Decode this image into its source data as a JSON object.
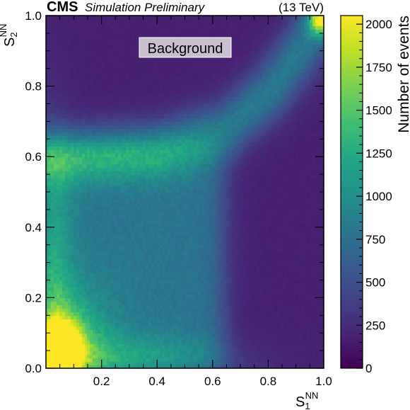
{
  "header": {
    "experiment": "CMS",
    "status": "Simulation Preliminary",
    "energy": "(13 TeV)"
  },
  "chart_data": {
    "type": "heatmap",
    "panel_label": "Background",
    "xlabel": {
      "base": "S",
      "sub": "1",
      "sup": "NN"
    },
    "ylabel": {
      "base": "S",
      "sub": "2",
      "sup": "NN"
    },
    "xlim": [
      0,
      1
    ],
    "ylim": [
      0,
      1
    ],
    "xticks": [
      {
        "value": 0.2,
        "label": "0.2"
      },
      {
        "value": 0.4,
        "label": "0.4"
      },
      {
        "value": 0.6,
        "label": "0.6"
      },
      {
        "value": 0.8,
        "label": "0.8"
      },
      {
        "value": 1.0,
        "label": "1.0"
      }
    ],
    "yticks": [
      {
        "value": 0.0,
        "label": "0.0"
      },
      {
        "value": 0.2,
        "label": "0.2"
      },
      {
        "value": 0.4,
        "label": "0.4"
      },
      {
        "value": 0.6,
        "label": "0.6"
      },
      {
        "value": 0.8,
        "label": "0.8"
      },
      {
        "value": 1.0,
        "label": "1.0"
      }
    ],
    "colorbar": {
      "label": "Number of events",
      "colormap": "viridis",
      "range": [
        0,
        2050
      ],
      "ticks": [
        {
          "value": 0,
          "label": "0"
        },
        {
          "value": 250,
          "label": "250"
        },
        {
          "value": 500,
          "label": "500"
        },
        {
          "value": 750,
          "label": "750"
        },
        {
          "value": 1000,
          "label": "1000"
        },
        {
          "value": 1250,
          "label": "1250"
        },
        {
          "value": 1500,
          "label": "1500"
        },
        {
          "value": 1750,
          "label": "1750"
        },
        {
          "value": 2000,
          "label": "2000"
        }
      ]
    },
    "density_model": {
      "background_level": 180,
      "components": [
        {
          "name": "low-score peak",
          "x": 0.05,
          "y": 0.05,
          "sx": 0.05,
          "sy": 0.05,
          "amplitude": 1750
        },
        {
          "name": "low-score halo",
          "x": 0.05,
          "y": 0.05,
          "sx": 0.11,
          "sy": 0.11,
          "amplitude": 800
        },
        {
          "name": "low-s1 band",
          "x": 0.0,
          "y": 0.3,
          "sx": 0.06,
          "sy": 0.25,
          "amplitude": 550
        },
        {
          "name": "low-s2 band",
          "x": 0.3,
          "y": 0.0,
          "sx": 0.25,
          "sy": 0.06,
          "amplitude": 500
        },
        {
          "name": "plateau",
          "x_range": [
            0.0,
            0.64
          ],
          "y_range": [
            0.0,
            0.64
          ],
          "amplitude": 700
        },
        {
          "name": "curved ridge",
          "points": [
            [
              0.0,
              0.6
            ],
            [
              0.4,
              0.62
            ],
            [
              0.65,
              0.68
            ],
            [
              0.8,
              0.78
            ],
            [
              0.9,
              0.88
            ],
            [
              1.0,
              1.0
            ]
          ],
          "width": 0.055,
          "amplitude": 650
        },
        {
          "name": "corner peak",
          "x": 0.99,
          "y": 0.99,
          "sx": 0.03,
          "sy": 0.03,
          "amplitude": 1400
        }
      ]
    }
  }
}
